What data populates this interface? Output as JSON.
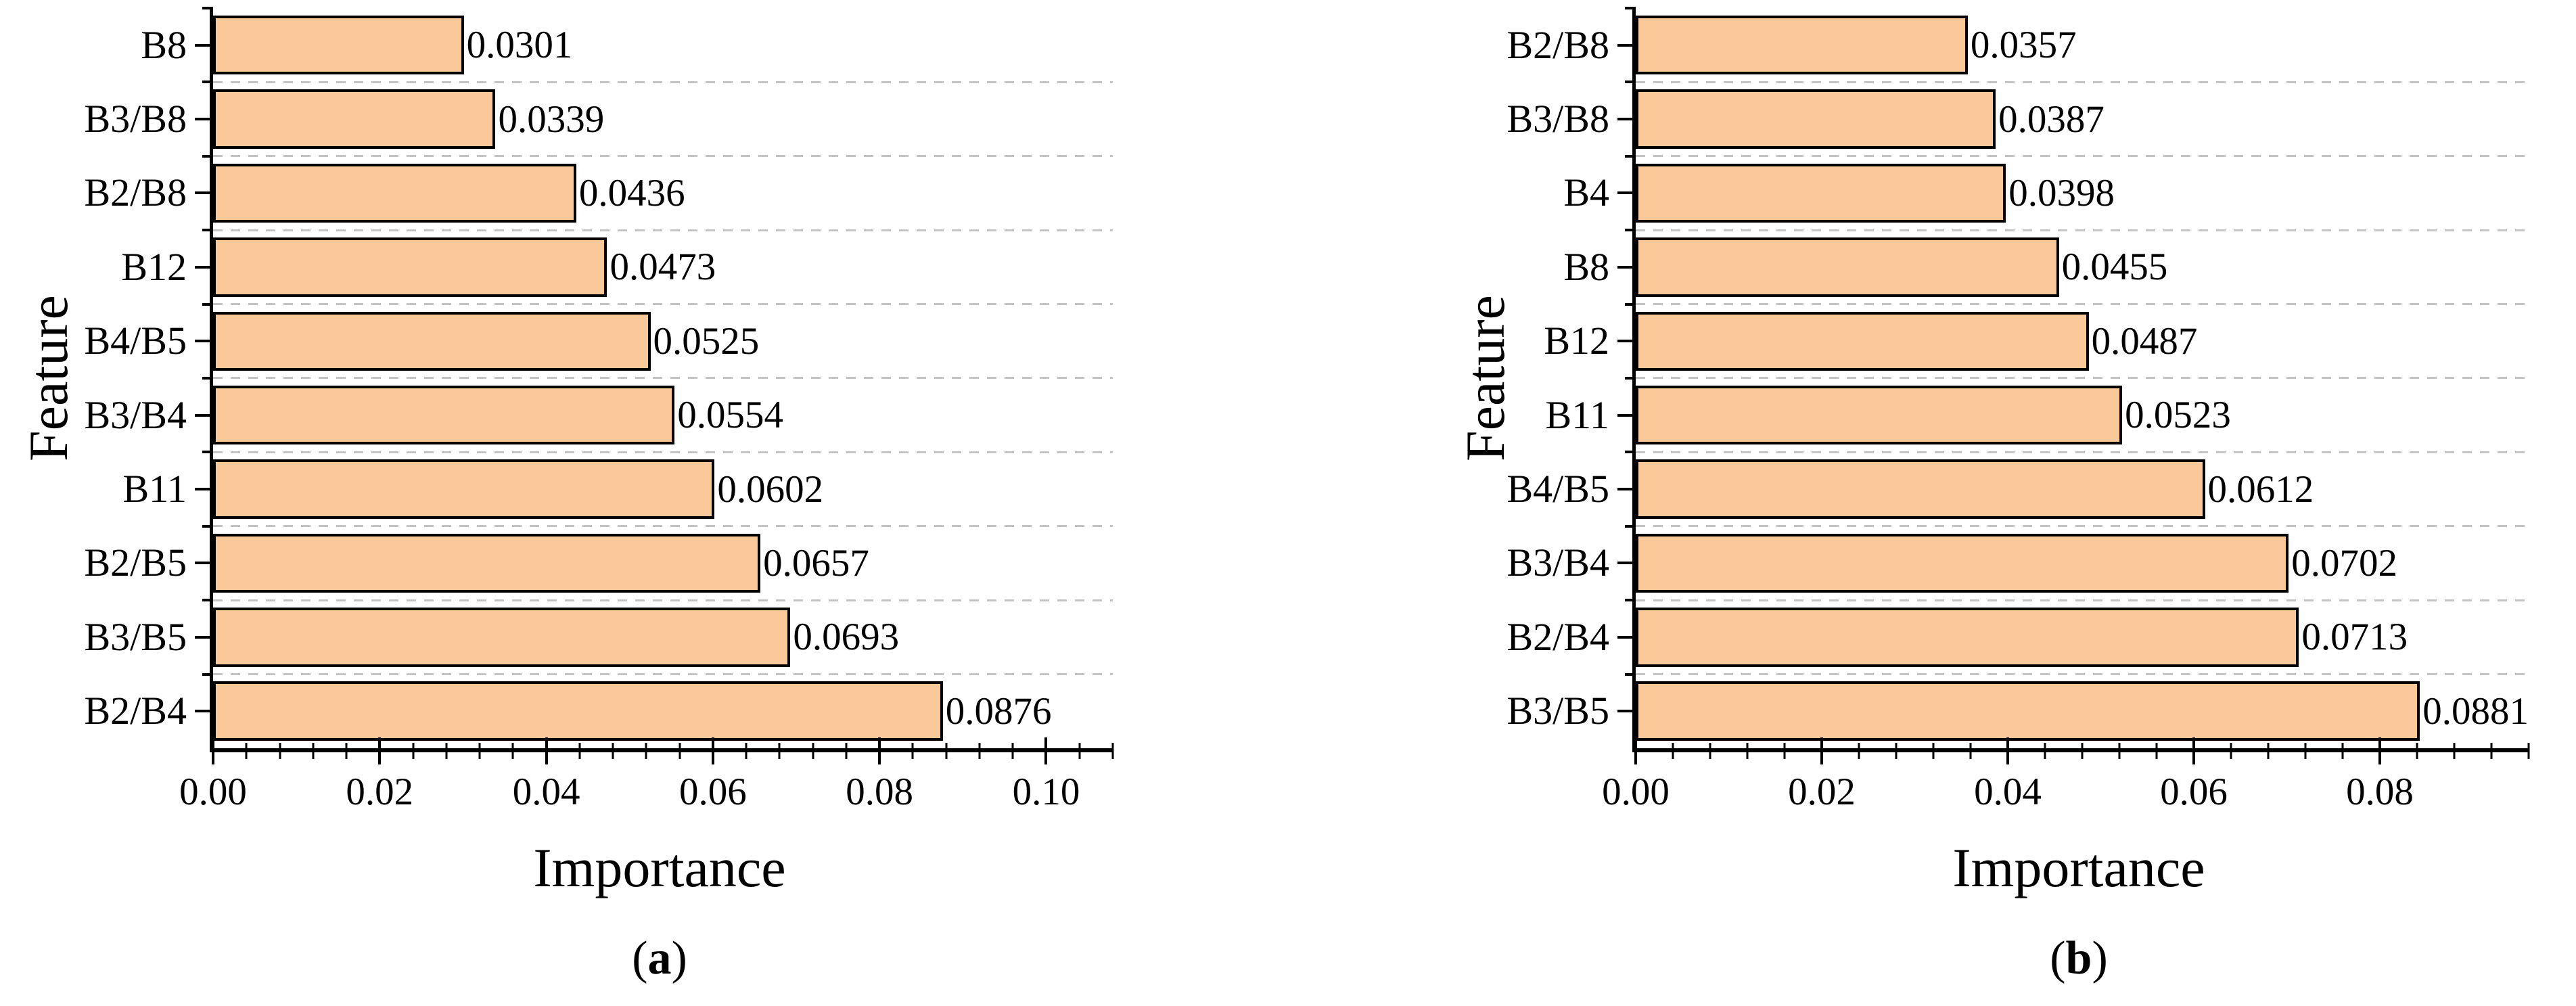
{
  "colors": {
    "bar_fill": "#FBC999",
    "bar_border": "#000000",
    "grid_line": "#C4C4C4",
    "axis": "#000000",
    "background": "#FFFFFF"
  },
  "chart_data": [
    {
      "type": "bar",
      "orientation": "horizontal",
      "title": "",
      "xlabel": "Importance",
      "ylabel": "Feature",
      "caption": {
        "open": "(",
        "letter": "a",
        "close": ")"
      },
      "xlim": [
        0,
        0.108
      ],
      "minor_tick_step": 0.004,
      "grid": "dashed horizontal lines at category boundaries",
      "legend": "none",
      "x_major_ticks": [
        {
          "value": 0.0,
          "label": "0.00"
        },
        {
          "value": 0.02,
          "label": "0.02"
        },
        {
          "value": 0.04,
          "label": "0.04"
        },
        {
          "value": 0.06,
          "label": "0.06"
        },
        {
          "value": 0.08,
          "label": "0.08"
        },
        {
          "value": 0.1,
          "label": "0.10"
        }
      ],
      "categories_top_to_bottom": [
        "B8",
        "B3/B8",
        "B2/B8",
        "B12",
        "B4/B5",
        "B3/B4",
        "B11",
        "B2/B5",
        "B3/B5",
        "B2/B4"
      ],
      "bars": [
        {
          "label": "B8",
          "value": 0.0301,
          "value_label": "0.0301"
        },
        {
          "label": "B3/B8",
          "value": 0.0339,
          "value_label": "0.0339"
        },
        {
          "label": "B2/B8",
          "value": 0.0436,
          "value_label": "0.0436"
        },
        {
          "label": "B12",
          "value": 0.0473,
          "value_label": "0.0473"
        },
        {
          "label": "B4/B5",
          "value": 0.0525,
          "value_label": "0.0525"
        },
        {
          "label": "B3/B4",
          "value": 0.0554,
          "value_label": "0.0554"
        },
        {
          "label": "B11",
          "value": 0.0602,
          "value_label": "0.0602"
        },
        {
          "label": "B2/B5",
          "value": 0.0657,
          "value_label": "0.0657"
        },
        {
          "label": "B3/B5",
          "value": 0.0693,
          "value_label": "0.0693"
        },
        {
          "label": "B2/B4",
          "value": 0.0876,
          "value_label": "0.0876"
        }
      ]
    },
    {
      "type": "bar",
      "orientation": "horizontal",
      "title": "",
      "xlabel": "Importance",
      "ylabel": "Feature",
      "caption": {
        "open": "(",
        "letter": "b",
        "close": ")"
      },
      "xlim": [
        0,
        0.096
      ],
      "minor_tick_step": 0.004,
      "grid": "dashed horizontal lines at category boundaries",
      "legend": "none",
      "x_major_ticks": [
        {
          "value": 0.0,
          "label": "0.00"
        },
        {
          "value": 0.02,
          "label": "0.02"
        },
        {
          "value": 0.04,
          "label": "0.04"
        },
        {
          "value": 0.06,
          "label": "0.06"
        },
        {
          "value": 0.08,
          "label": "0.08"
        }
      ],
      "categories_top_to_bottom": [
        "B2/B8",
        "B3/B8",
        "B4",
        "B8",
        "B12",
        "B11",
        "B4/B5",
        "B3/B4",
        "B2/B4",
        "B3/B5"
      ],
      "bars": [
        {
          "label": "B2/B8",
          "value": 0.0357,
          "value_label": "0.0357"
        },
        {
          "label": "B3/B8",
          "value": 0.0387,
          "value_label": "0.0387"
        },
        {
          "label": "B4",
          "value": 0.0398,
          "value_label": "0.0398"
        },
        {
          "label": "B8",
          "value": 0.0455,
          "value_label": "0.0455"
        },
        {
          "label": "B12",
          "value": 0.0487,
          "value_label": "0.0487"
        },
        {
          "label": "B11",
          "value": 0.0523,
          "value_label": "0.0523"
        },
        {
          "label": "B4/B5",
          "value": 0.0612,
          "value_label": "0.0612"
        },
        {
          "label": "B3/B4",
          "value": 0.0702,
          "value_label": "0.0702"
        },
        {
          "label": "B2/B4",
          "value": 0.0713,
          "value_label": "0.0713"
        },
        {
          "label": "B3/B5",
          "value": 0.0881,
          "value_label": "0.0881"
        }
      ]
    }
  ]
}
